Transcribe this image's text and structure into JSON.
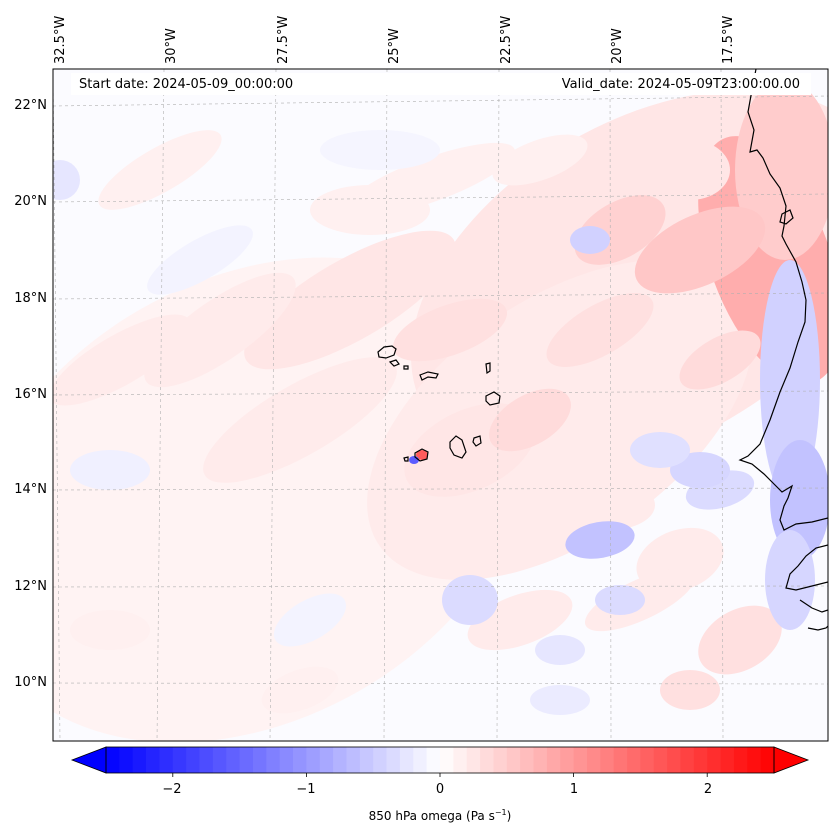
{
  "map": {
    "start_date": "Start date: 2024-05-09_00:00:00",
    "valid_date": "Valid_date: 2024-05-09T23:00:00.00",
    "lon_labels": [
      "32.5°W",
      "30°W",
      "27.5°W",
      "25°W",
      "22.5°W",
      "20°W",
      "17.5°W"
    ],
    "lat_labels": [
      "22°N",
      "20°N",
      "18°N",
      "16°N",
      "14°N",
      "12°N",
      "10°N"
    ],
    "field": "850 hPa omega"
  },
  "colorbar": {
    "label": "850 hPa omega (Pa s",
    "label_exp": "−1",
    "label_close": ")",
    "ticks": [
      "−2",
      "−1",
      "0",
      "1",
      "2"
    ],
    "tick_values": [
      -2,
      -1,
      0,
      1,
      2
    ],
    "min": -2.5,
    "max": 2.5,
    "n_levels": 50,
    "colormap": "bwr",
    "low_color": "#0000ff",
    "mid_color": "#ffffff",
    "high_color": "#ff0000"
  },
  "colors": {
    "coastline": "#000000",
    "gridline": "#b0b0b0"
  }
}
